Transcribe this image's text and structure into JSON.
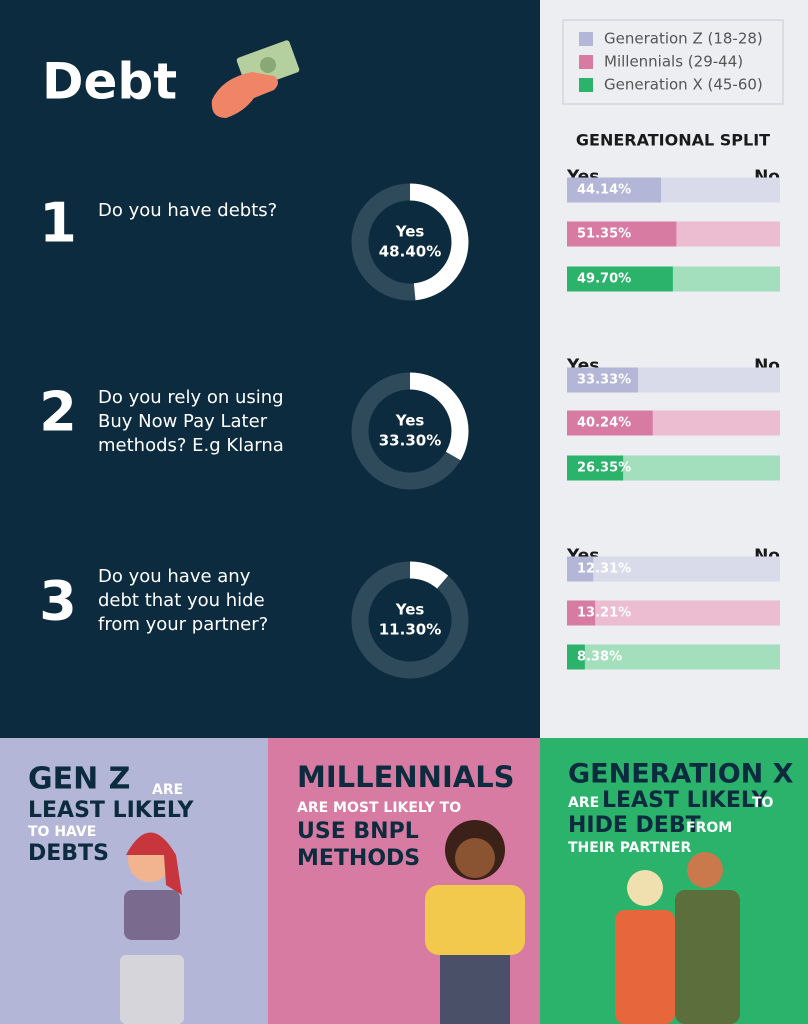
{
  "title": "Debt",
  "legend": [
    {
      "name": "Generation Z (18-28)",
      "color": "#b3b6d6",
      "track": "#d9dbea"
    },
    {
      "name": "Millennials (29-44)",
      "color": "#d77ba3",
      "track": "#ecbcd1"
    },
    {
      "name": "Generation X (45-60)",
      "color": "#2bb36b",
      "track": "#a3dfbd"
    }
  ],
  "split_title": "GENERATIONAL SPLIT",
  "questions": [
    {
      "number": "1",
      "lines": [
        "Do you have debts?"
      ],
      "answer": "Yes",
      "value": 48.4,
      "value_label": "48.40%",
      "yes": "Yes",
      "no": "No",
      "split": [
        44.14,
        51.35,
        49.7
      ],
      "split_labels": [
        "44.14%",
        "51.35%",
        "49.70%"
      ]
    },
    {
      "number": "2",
      "lines": [
        "Do you rely on using",
        "Buy Now Pay Later",
        "methods? E.g Klarna"
      ],
      "answer": "Yes",
      "value": 33.3,
      "value_label": "33.30%",
      "yes": "Yes",
      "no": "No",
      "split": [
        33.33,
        40.24,
        26.35
      ],
      "split_labels": [
        "33.33%",
        "40.24%",
        "26.35%"
      ]
    },
    {
      "number": "3",
      "lines": [
        "Do you have any",
        "debt that you hide",
        "from your partner?"
      ],
      "answer": "Yes",
      "value": 11.3,
      "value_label": "11.30%",
      "yes": "Yes",
      "no": "No",
      "split": [
        12.31,
        13.21,
        8.38
      ],
      "split_labels": [
        "12.31%",
        "13.21%",
        "8.38%"
      ]
    }
  ],
  "panels": [
    {
      "lines": [
        [
          "GEN Z",
          "ARE"
        ],
        [
          "LEAST LIKELY"
        ],
        [
          "TO HAVE"
        ],
        [
          "DEBTS"
        ]
      ]
    },
    {
      "lines": [
        [
          "MILLENNIALS"
        ],
        [
          "ARE MOST LIKELY TO"
        ],
        [
          "USE BNPL"
        ],
        [
          "METHODS"
        ]
      ]
    },
    {
      "lines": [
        [
          "GENERATION X"
        ],
        [
          "ARE",
          "LEAST LIKELY",
          "TO"
        ],
        [
          "HIDE DEBT",
          "FROM"
        ],
        [
          "THEIR PARTNER"
        ]
      ]
    }
  ]
}
